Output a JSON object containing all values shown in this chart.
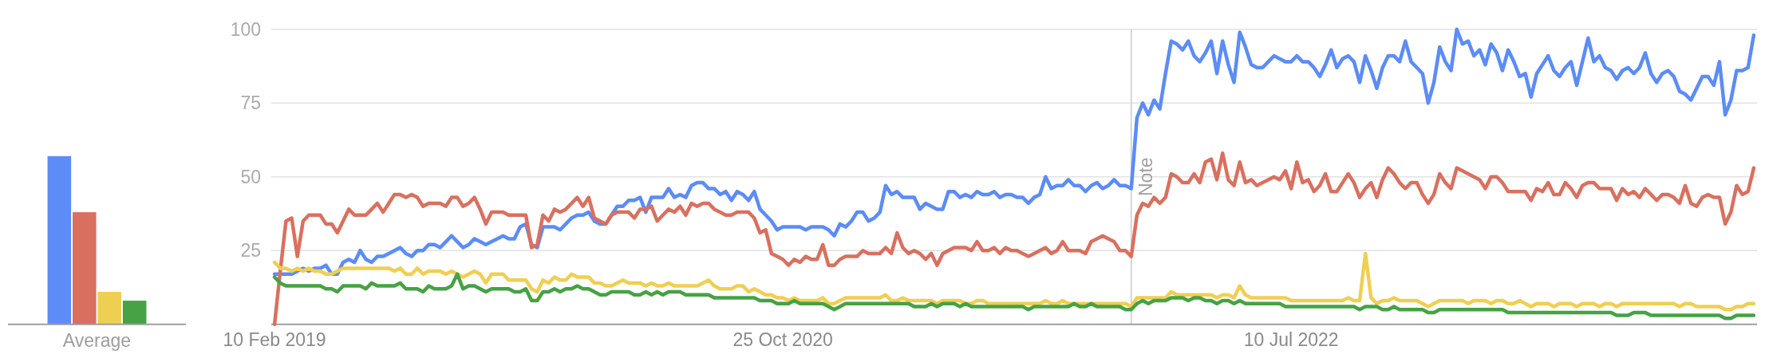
{
  "chart_data": [
    {
      "type": "bar",
      "categories": [
        "Average"
      ],
      "series": [
        {
          "color": "#5c8cf5",
          "values": [
            57
          ]
        },
        {
          "color": "#d9705f",
          "values": [
            38
          ]
        },
        {
          "color": "#efcf52",
          "values": [
            11
          ]
        },
        {
          "color": "#46a245",
          "values": [
            8
          ]
        }
      ],
      "ylim": [
        0,
        100
      ],
      "tick_labels": "x"
    },
    {
      "type": "line",
      "x": [
        "2019-02-10",
        "2019-02-17",
        "2019-02-24",
        "2019-03-03",
        "2019-03-10",
        "2019-03-17",
        "2019-03-24",
        "2019-03-31",
        "2019-04-07",
        "2019-04-14",
        "2019-04-21",
        "2019-04-28",
        "2019-05-05",
        "2019-05-12",
        "2019-05-19",
        "2019-05-26",
        "2019-06-02",
        "2019-06-09",
        "2019-06-16",
        "2019-06-23",
        "2019-06-30",
        "2019-07-07",
        "2019-07-14",
        "2019-07-21",
        "2019-07-28",
        "2019-08-04",
        "2019-08-11",
        "2019-08-18",
        "2019-08-25",
        "2019-09-01",
        "2019-09-08",
        "2019-09-15",
        "2019-09-22",
        "2019-09-29",
        "2019-10-06",
        "2019-10-13",
        "2019-10-20",
        "2019-10-27",
        "2019-11-03",
        "2019-11-10",
        "2019-11-17",
        "2019-11-24",
        "2019-12-01",
        "2019-12-08",
        "2019-12-15",
        "2019-12-22",
        "2019-12-29",
        "2020-01-05",
        "2020-01-12",
        "2020-01-19",
        "2020-01-26",
        "2020-02-02",
        "2020-02-09",
        "2020-02-16",
        "2020-02-23",
        "2020-03-01",
        "2020-03-08",
        "2020-03-15",
        "2020-03-22",
        "2020-03-29",
        "2020-04-05",
        "2020-04-12",
        "2020-04-19",
        "2020-04-26",
        "2020-05-03",
        "2020-05-10",
        "2020-05-17",
        "2020-05-24",
        "2020-05-31",
        "2020-06-07",
        "2020-06-14",
        "2020-06-21",
        "2020-06-28",
        "2020-07-05",
        "2020-07-12",
        "2020-07-19",
        "2020-07-26",
        "2020-08-02",
        "2020-08-09",
        "2020-08-16",
        "2020-08-23",
        "2020-08-30",
        "2020-09-06",
        "2020-09-13",
        "2020-09-20",
        "2020-09-27",
        "2020-10-04",
        "2020-10-11",
        "2020-10-18",
        "2020-10-25",
        "2020-11-01",
        "2020-11-08",
        "2020-11-15",
        "2020-11-22",
        "2020-11-29",
        "2020-12-06",
        "2020-12-13",
        "2020-12-20",
        "2020-12-27",
        "2021-01-03",
        "2021-01-10",
        "2021-01-17",
        "2021-01-24",
        "2021-01-31",
        "2021-02-07",
        "2021-02-14",
        "2021-02-21",
        "2021-02-28",
        "2021-03-07",
        "2021-03-14",
        "2021-03-21",
        "2021-03-28",
        "2021-04-04",
        "2021-04-11",
        "2021-04-18",
        "2021-04-25",
        "2021-05-02",
        "2021-05-09",
        "2021-05-16",
        "2021-05-23",
        "2021-05-30",
        "2021-06-06",
        "2021-06-13",
        "2021-06-20",
        "2021-06-27",
        "2021-07-04",
        "2021-07-11",
        "2021-07-18",
        "2021-07-25",
        "2021-08-01",
        "2021-08-08",
        "2021-08-15",
        "2021-08-22",
        "2021-08-29",
        "2021-09-05",
        "2021-09-12",
        "2021-09-19",
        "2021-09-26",
        "2021-10-03",
        "2021-10-10",
        "2021-10-17",
        "2021-10-24",
        "2021-10-31",
        "2021-11-07",
        "2021-11-14",
        "2021-11-21",
        "2021-11-28",
        "2021-12-05",
        "2021-12-12",
        "2021-12-19",
        "2021-12-26",
        "2022-01-02",
        "2022-01-09",
        "2022-01-16",
        "2022-01-23",
        "2022-01-30",
        "2022-02-06",
        "2022-02-13",
        "2022-02-20",
        "2022-02-27",
        "2022-03-06",
        "2022-03-13",
        "2022-03-20",
        "2022-03-27",
        "2022-04-03",
        "2022-04-10",
        "2022-04-17",
        "2022-04-24",
        "2022-05-01",
        "2022-05-08",
        "2022-05-15",
        "2022-05-22",
        "2022-05-29",
        "2022-06-05",
        "2022-06-12",
        "2022-06-19",
        "2022-06-26",
        "2022-07-03",
        "2022-07-10",
        "2022-07-17",
        "2022-07-24",
        "2022-07-31",
        "2022-08-07",
        "2022-08-14",
        "2022-08-21",
        "2022-08-28",
        "2022-09-04",
        "2022-09-11",
        "2022-09-18",
        "2022-09-25",
        "2022-10-02",
        "2022-10-09",
        "2022-10-16",
        "2022-10-23",
        "2022-10-30",
        "2022-11-06",
        "2022-11-13",
        "2022-11-20",
        "2022-11-27",
        "2022-12-04",
        "2022-12-11",
        "2022-12-18",
        "2022-12-25",
        "2023-01-01",
        "2023-01-08",
        "2023-01-15",
        "2023-01-22",
        "2023-01-29",
        "2023-02-05",
        "2023-02-12",
        "2023-02-19",
        "2023-02-26",
        "2023-03-05",
        "2023-03-12",
        "2023-03-19",
        "2023-03-26",
        "2023-04-02",
        "2023-04-09",
        "2023-04-16",
        "2023-04-23",
        "2023-04-30",
        "2023-05-07",
        "2023-05-14",
        "2023-05-21",
        "2023-05-28",
        "2023-06-04",
        "2023-06-11",
        "2023-06-18",
        "2023-06-25",
        "2023-07-02",
        "2023-07-09",
        "2023-07-16",
        "2023-07-23",
        "2023-07-30",
        "2023-08-06",
        "2023-08-13",
        "2023-08-20",
        "2023-08-27",
        "2023-09-03",
        "2023-09-10",
        "2023-09-17",
        "2023-09-24",
        "2023-10-01",
        "2023-10-08",
        "2023-10-15",
        "2023-10-22",
        "2023-10-29",
        "2023-11-05",
        "2023-11-12",
        "2023-11-19",
        "2023-11-26",
        "2023-12-03",
        "2023-12-10",
        "2023-12-17",
        "2023-12-24",
        "2023-12-31",
        "2024-01-07",
        "2024-01-14",
        "2024-01-21",
        "2024-01-28"
      ],
      "series": [
        {
          "color": "#5c8cf5",
          "values": [
            17,
            17,
            17,
            17,
            18,
            19,
            18,
            19,
            19,
            20,
            17,
            17,
            21,
            22,
            21,
            25,
            22,
            21,
            23,
            23,
            24,
            25,
            26,
            24,
            23,
            25,
            25,
            27,
            27,
            26,
            28,
            30,
            28,
            26,
            27,
            29,
            28,
            27,
            28,
            29,
            30,
            29,
            29,
            33,
            34,
            27,
            26,
            33,
            33,
            33,
            32,
            34,
            36,
            37,
            37,
            38,
            35,
            34,
            34,
            37,
            40,
            40,
            42,
            42,
            43,
            38,
            43,
            43,
            43,
            46,
            43,
            44,
            43,
            47,
            48,
            48,
            46,
            46,
            44,
            45,
            42,
            45,
            44,
            42,
            45,
            39,
            37,
            35,
            32,
            33,
            33,
            33,
            33,
            32,
            33,
            33,
            33,
            32,
            30,
            34,
            33,
            35,
            38,
            38,
            35,
            36,
            38,
            47,
            44,
            45,
            43,
            43,
            43,
            39,
            41,
            40,
            39,
            39,
            45,
            45,
            43,
            44,
            43,
            45,
            44,
            44,
            45,
            43,
            44,
            44,
            43,
            43,
            41,
            43,
            44,
            50,
            46,
            47,
            47,
            49,
            47,
            47,
            45,
            47,
            48,
            46,
            47,
            49,
            47,
            47,
            46,
            70,
            75,
            71,
            76,
            73,
            85,
            96,
            95,
            93,
            96,
            91,
            89,
            92,
            96,
            85,
            96,
            88,
            82,
            99,
            94,
            88,
            87,
            87,
            89,
            91,
            90,
            89,
            89,
            91,
            89,
            89,
            87,
            84,
            88,
            93,
            87,
            90,
            91,
            89,
            82,
            91,
            86,
            80,
            87,
            91,
            91,
            89,
            96,
            89,
            87,
            85,
            75,
            82,
            94,
            89,
            86,
            100,
            95,
            96,
            91,
            93,
            88,
            95,
            92,
            86,
            93,
            89,
            84,
            85,
            77,
            85,
            88,
            91,
            86,
            84,
            87,
            89,
            81,
            89,
            97,
            89,
            91,
            87,
            86,
            83,
            86,
            87,
            85,
            87,
            92,
            85,
            82,
            85,
            86,
            84,
            79,
            78,
            76,
            80,
            84,
            84,
            81,
            89,
            71,
            76,
            86,
            86,
            87,
            98
          ]
        },
        {
          "color": "#d9705f",
          "values": [
            0,
            18,
            35,
            36,
            23,
            35,
            37,
            37,
            37,
            34,
            34,
            31,
            35,
            39,
            37,
            37,
            37,
            39,
            41,
            38,
            41,
            44,
            44,
            43,
            44,
            43,
            40,
            41,
            41,
            41,
            40,
            43,
            43,
            40,
            41,
            43,
            39,
            34,
            38,
            38,
            38,
            37,
            37,
            37,
            37,
            26,
            27,
            37,
            35,
            39,
            38,
            39,
            41,
            43,
            40,
            43,
            36,
            35,
            34,
            37,
            38,
            38,
            38,
            36,
            39,
            39,
            40,
            35,
            37,
            39,
            38,
            40,
            37,
            41,
            40,
            41,
            41,
            39,
            38,
            37,
            37,
            38,
            38,
            38,
            36,
            31,
            32,
            24,
            23,
            22,
            20,
            22,
            21,
            23,
            22,
            22,
            27,
            20,
            20,
            22,
            23,
            23,
            23,
            25,
            24,
            24,
            24,
            26,
            24,
            31,
            26,
            24,
            25,
            24,
            22,
            24,
            20,
            24,
            25,
            26,
            26,
            26,
            25,
            28,
            25,
            25,
            26,
            24,
            26,
            25,
            25,
            24,
            23,
            24,
            25,
            26,
            24,
            25,
            28,
            25,
            25,
            25,
            24,
            28,
            29,
            30,
            29,
            28,
            25,
            25,
            23,
            37,
            41,
            40,
            43,
            41,
            43,
            51,
            50,
            48,
            48,
            51,
            48,
            55,
            56,
            49,
            58,
            49,
            47,
            55,
            48,
            49,
            47,
            48,
            49,
            50,
            49,
            52,
            46,
            55,
            48,
            49,
            45,
            47,
            51,
            45,
            45,
            48,
            51,
            48,
            43,
            46,
            48,
            43,
            49,
            53,
            51,
            48,
            46,
            48,
            48,
            44,
            41,
            44,
            51,
            48,
            46,
            53,
            52,
            51,
            50,
            49,
            46,
            50,
            50,
            48,
            45,
            45,
            45,
            45,
            42,
            46,
            45,
            48,
            44,
            44,
            48,
            46,
            43,
            47,
            48,
            48,
            46,
            46,
            46,
            42,
            46,
            44,
            45,
            43,
            46,
            44,
            42,
            44,
            44,
            43,
            41,
            47,
            41,
            40,
            43,
            44,
            43,
            43,
            34,
            38,
            47,
            44,
            45,
            53
          ]
        },
        {
          "color": "#efcf52",
          "values": [
            21,
            19,
            19,
            18,
            19,
            18,
            19,
            18,
            18,
            17,
            17,
            18,
            19,
            19,
            19,
            19,
            19,
            19,
            19,
            19,
            19,
            18,
            19,
            17,
            17,
            19,
            17,
            18,
            18,
            18,
            17,
            18,
            17,
            16,
            17,
            18,
            17,
            14,
            17,
            17,
            17,
            15,
            15,
            15,
            15,
            12,
            11,
            15,
            14,
            16,
            15,
            15,
            17,
            16,
            16,
            16,
            14,
            14,
            13,
            13,
            14,
            15,
            14,
            14,
            14,
            13,
            14,
            13,
            13,
            14,
            13,
            13,
            13,
            13,
            13,
            14,
            15,
            13,
            12,
            12,
            12,
            13,
            13,
            11,
            12,
            11,
            10,
            10,
            9,
            9,
            8,
            9,
            8,
            8,
            8,
            8,
            9,
            7,
            7,
            8,
            9,
            9,
            9,
            9,
            9,
            9,
            9,
            10,
            8,
            8,
            9,
            8,
            8,
            8,
            8,
            8,
            7,
            8,
            8,
            8,
            8,
            7,
            7,
            8,
            8,
            7,
            7,
            7,
            7,
            7,
            7,
            7,
            7,
            7,
            7,
            8,
            7,
            7,
            8,
            7,
            7,
            7,
            7,
            7,
            7,
            7,
            7,
            7,
            7,
            7,
            6,
            9,
            9,
            9,
            9,
            9,
            9,
            11,
            10,
            10,
            10,
            10,
            10,
            10,
            10,
            9,
            10,
            10,
            9,
            13,
            10,
            9,
            9,
            9,
            9,
            9,
            9,
            9,
            8,
            8,
            8,
            8,
            8,
            8,
            8,
            8,
            8,
            8,
            9,
            8,
            8,
            24,
            9,
            7,
            8,
            8,
            9,
            8,
            8,
            8,
            8,
            7,
            6,
            7,
            8,
            8,
            8,
            8,
            8,
            7,
            8,
            8,
            8,
            7,
            8,
            8,
            7,
            7,
            8,
            7,
            6,
            7,
            7,
            7,
            6,
            7,
            7,
            7,
            6,
            7,
            7,
            7,
            6,
            7,
            7,
            6,
            7,
            7,
            7,
            7,
            7,
            7,
            7,
            7,
            7,
            7,
            6,
            7,
            7,
            6,
            6,
            6,
            6,
            6,
            5,
            5,
            6,
            6,
            7,
            7
          ]
        },
        {
          "color": "#46a245",
          "values": [
            16,
            14,
            13,
            13,
            13,
            13,
            13,
            13,
            13,
            12,
            12,
            11,
            13,
            13,
            13,
            13,
            12,
            14,
            13,
            13,
            13,
            13,
            14,
            12,
            12,
            12,
            11,
            13,
            12,
            12,
            12,
            13,
            17,
            12,
            13,
            13,
            12,
            11,
            12,
            12,
            12,
            12,
            11,
            11,
            12,
            8,
            8,
            11,
            11,
            12,
            11,
            12,
            12,
            13,
            12,
            12,
            11,
            10,
            10,
            11,
            11,
            11,
            11,
            10,
            10,
            11,
            10,
            11,
            10,
            11,
            11,
            11,
            10,
            10,
            10,
            10,
            10,
            9,
            9,
            9,
            9,
            9,
            9,
            9,
            9,
            8,
            8,
            8,
            7,
            7,
            7,
            8,
            7,
            7,
            7,
            7,
            7,
            6,
            5,
            6,
            7,
            7,
            7,
            7,
            7,
            7,
            7,
            7,
            7,
            7,
            7,
            7,
            6,
            6,
            6,
            7,
            6,
            7,
            7,
            7,
            6,
            7,
            6,
            6,
            6,
            6,
            6,
            6,
            6,
            6,
            6,
            6,
            5,
            6,
            6,
            6,
            6,
            6,
            6,
            6,
            7,
            6,
            6,
            7,
            6,
            6,
            6,
            6,
            6,
            5,
            5,
            7,
            8,
            7,
            8,
            8,
            8,
            9,
            9,
            9,
            8,
            9,
            9,
            8,
            8,
            7,
            8,
            8,
            7,
            8,
            7,
            7,
            7,
            7,
            7,
            7,
            7,
            6,
            6,
            6,
            6,
            6,
            6,
            6,
            6,
            6,
            6,
            6,
            6,
            6,
            5,
            6,
            6,
            6,
            5,
            5,
            6,
            5,
            5,
            5,
            5,
            5,
            4,
            4,
            5,
            5,
            5,
            5,
            5,
            5,
            5,
            5,
            5,
            5,
            5,
            5,
            4,
            4,
            4,
            4,
            4,
            4,
            4,
            4,
            4,
            4,
            4,
            4,
            4,
            4,
            4,
            4,
            4,
            4,
            4,
            3,
            3,
            3,
            4,
            4,
            4,
            3,
            3,
            3,
            3,
            3,
            3,
            3,
            3,
            3,
            3,
            3,
            3,
            3,
            2,
            2,
            3,
            3,
            3,
            3
          ]
        }
      ],
      "xlim": [
        "2019-02-06",
        "2024-02-01"
      ],
      "xticks": [
        {
          "value": "2019-02-10",
          "label": "10 Feb 2019"
        },
        {
          "value": "2020-10-25",
          "label": "25 Oct 2020"
        },
        {
          "value": "2022-07-10",
          "label": "10 Jul 2022"
        }
      ],
      "ylim": [
        0,
        100
      ],
      "yticks": [
        25,
        50,
        75,
        100
      ],
      "grid": "y",
      "ref_lines": [
        {
          "axis": "x",
          "value": "2021-12-26",
          "label": "Note",
          "color": "#cccccc"
        }
      ]
    }
  ]
}
